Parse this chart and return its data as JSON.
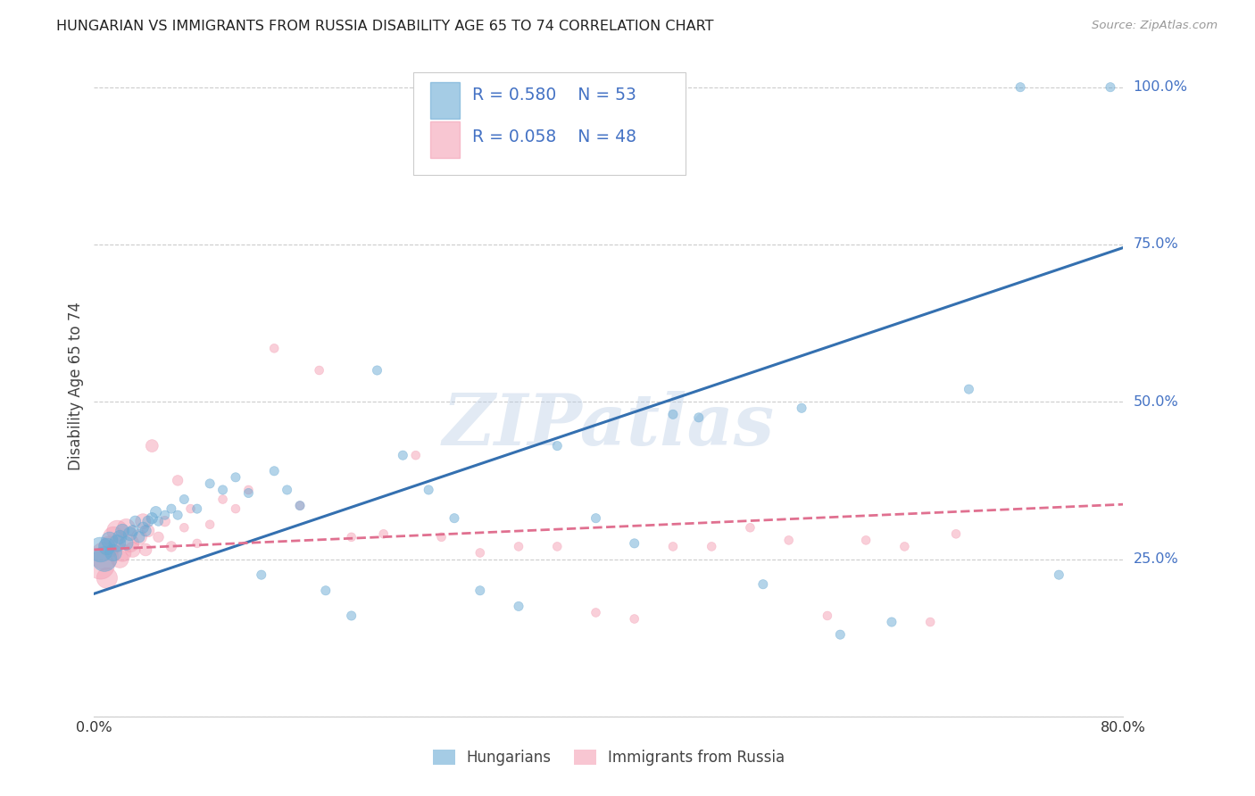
{
  "title": "HUNGARIAN VS IMMIGRANTS FROM RUSSIA DISABILITY AGE 65 TO 74 CORRELATION CHART",
  "source": "Source: ZipAtlas.com",
  "ylabel": "Disability Age 65 to 74",
  "xlim": [
    0.0,
    0.8
  ],
  "ylim": [
    0.0,
    1.05
  ],
  "xticks": [
    0.0,
    0.1,
    0.2,
    0.3,
    0.4,
    0.5,
    0.6,
    0.7,
    0.8
  ],
  "xticklabels": [
    "0.0%",
    "",
    "",
    "",
    "",
    "",
    "",
    "",
    "80.0%"
  ],
  "ytick_positions": [
    0.0,
    0.25,
    0.5,
    0.75,
    1.0
  ],
  "ytick_labels": [
    "",
    "25.0%",
    "50.0%",
    "75.0%",
    "100.0%"
  ],
  "grid_color": "#cccccc",
  "blue_color": "#6aaad4",
  "pink_color": "#f4a0b5",
  "line_blue": "#3470b0",
  "line_pink": "#e07090",
  "text_blue": "#4472c4",
  "legend_label1": "Hungarians",
  "legend_label2": "Immigrants from Russia",
  "blue_slope": 0.6875,
  "blue_intercept": 0.195,
  "pink_slope": 0.09,
  "pink_intercept": 0.265,
  "hungarian_x": [
    0.005,
    0.008,
    0.01,
    0.012,
    0.015,
    0.018,
    0.02,
    0.022,
    0.025,
    0.028,
    0.03,
    0.032,
    0.035,
    0.038,
    0.04,
    0.042,
    0.045,
    0.048,
    0.05,
    0.055,
    0.06,
    0.065,
    0.07,
    0.08,
    0.09,
    0.1,
    0.11,
    0.12,
    0.13,
    0.14,
    0.15,
    0.16,
    0.18,
    0.2,
    0.22,
    0.24,
    0.26,
    0.28,
    0.3,
    0.33,
    0.36,
    0.39,
    0.42,
    0.45,
    0.47,
    0.52,
    0.55,
    0.58,
    0.62,
    0.68,
    0.72,
    0.75,
    0.79
  ],
  "hungarian_y": [
    0.265,
    0.25,
    0.27,
    0.28,
    0.26,
    0.275,
    0.285,
    0.295,
    0.275,
    0.29,
    0.295,
    0.31,
    0.285,
    0.3,
    0.295,
    0.31,
    0.315,
    0.325,
    0.31,
    0.32,
    0.33,
    0.32,
    0.345,
    0.33,
    0.37,
    0.36,
    0.38,
    0.355,
    0.225,
    0.39,
    0.36,
    0.335,
    0.2,
    0.16,
    0.55,
    0.415,
    0.36,
    0.315,
    0.2,
    0.175,
    0.43,
    0.315,
    0.275,
    0.48,
    0.475,
    0.21,
    0.49,
    0.13,
    0.15,
    0.52,
    1.0,
    0.225,
    1.0
  ],
  "russian_x": [
    0.005,
    0.008,
    0.01,
    0.012,
    0.015,
    0.018,
    0.02,
    0.022,
    0.025,
    0.028,
    0.03,
    0.035,
    0.038,
    0.04,
    0.042,
    0.045,
    0.05,
    0.055,
    0.06,
    0.065,
    0.07,
    0.075,
    0.08,
    0.09,
    0.1,
    0.11,
    0.12,
    0.14,
    0.16,
    0.175,
    0.2,
    0.225,
    0.25,
    0.27,
    0.3,
    0.33,
    0.36,
    0.39,
    0.42,
    0.45,
    0.48,
    0.51,
    0.54,
    0.57,
    0.6,
    0.63,
    0.65,
    0.67
  ],
  "russian_y": [
    0.24,
    0.255,
    0.22,
    0.27,
    0.285,
    0.295,
    0.25,
    0.26,
    0.3,
    0.275,
    0.265,
    0.285,
    0.31,
    0.265,
    0.295,
    0.43,
    0.285,
    0.31,
    0.27,
    0.375,
    0.3,
    0.33,
    0.275,
    0.305,
    0.345,
    0.33,
    0.36,
    0.585,
    0.335,
    0.55,
    0.285,
    0.29,
    0.415,
    0.285,
    0.26,
    0.27,
    0.27,
    0.165,
    0.155,
    0.27,
    0.27,
    0.3,
    0.28,
    0.16,
    0.28,
    0.27,
    0.15,
    0.29
  ]
}
